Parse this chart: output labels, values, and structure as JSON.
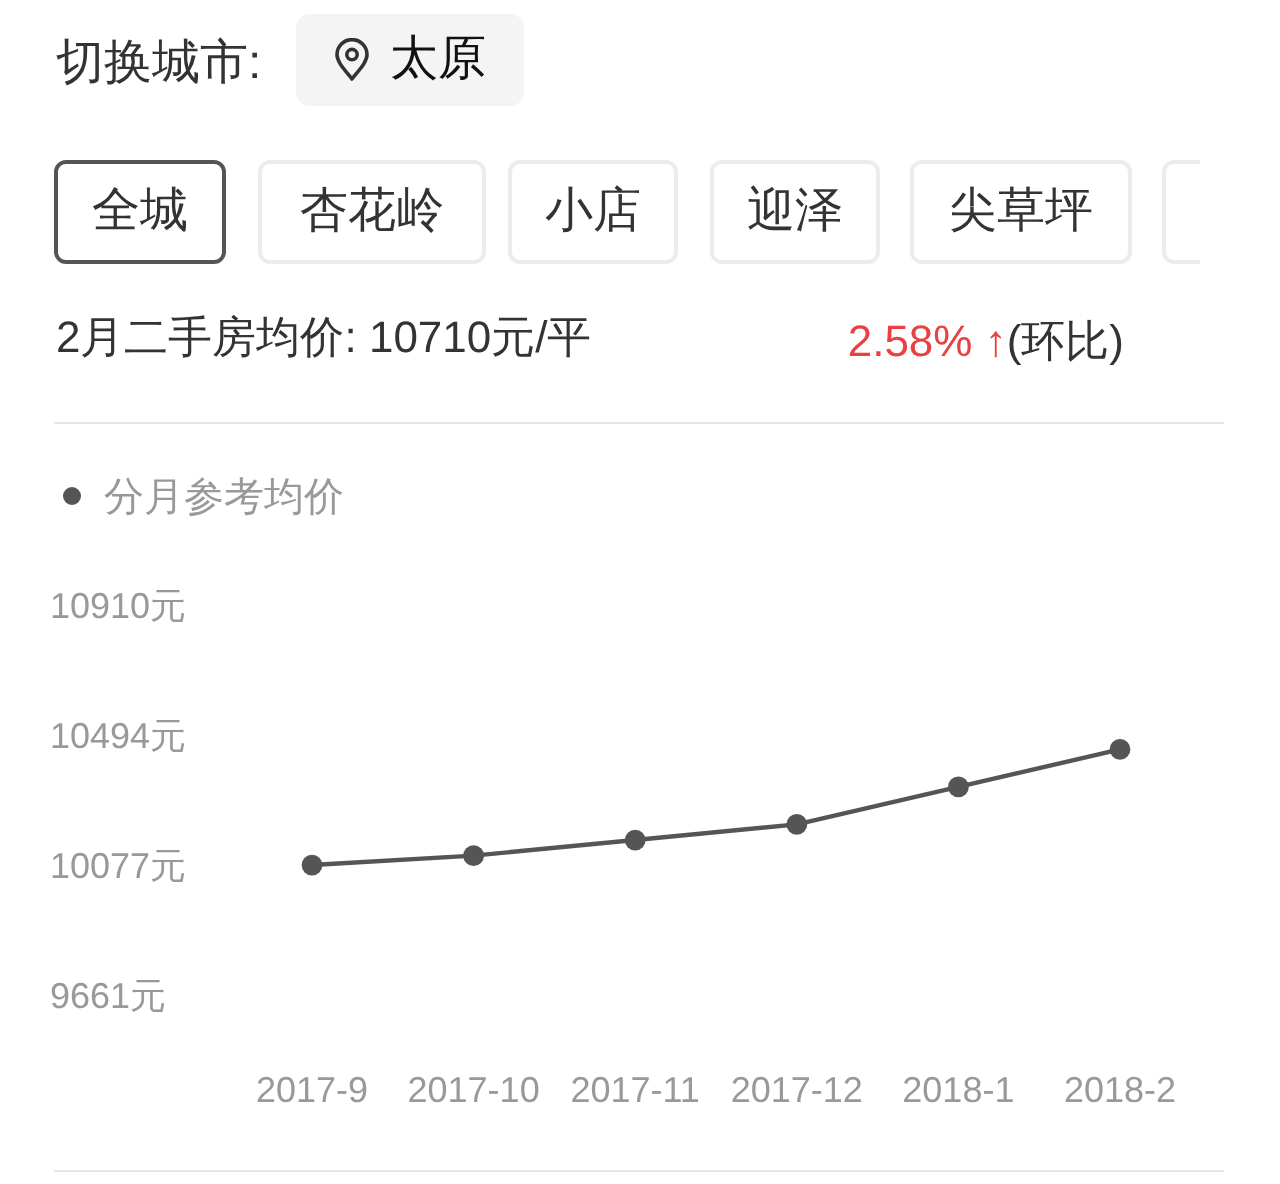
{
  "chart_data": {
    "type": "line",
    "title": "2月二手房均价: 10710元/平",
    "annotations": [
      "切换城市:",
      "太原",
      "全城",
      "杏花岭",
      "小店",
      "迎泽",
      "尖草坪",
      "2.58% ↑",
      "(环比)"
    ],
    "categories": [
      "2017-9",
      "2017-10",
      "2017-11",
      "2017-12",
      "2018-1",
      "2018-2"
    ],
    "series": [
      {
        "name": "分月参考均价",
        "color": "#555555",
        "values": [
          10080,
          10110,
          10160,
          10210,
          10330,
          10450
        ]
      }
    ],
    "ylim": [
      9661,
      10910
    ],
    "yticks": [
      {
        "value": 9661,
        "label": "9661元"
      },
      {
        "value": 10077,
        "label": "10077元"
      },
      {
        "value": 10494,
        "label": "10494元"
      },
      {
        "value": 10910,
        "label": "10910元"
      }
    ],
    "legend": "top left",
    "marker": "circle"
  }
}
